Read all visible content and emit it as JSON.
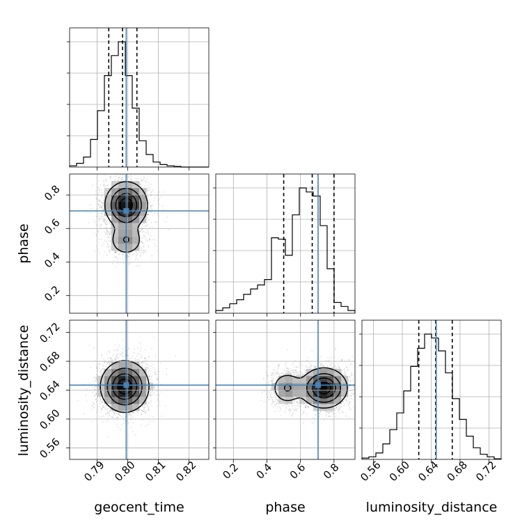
{
  "chart_data": {
    "type": "corner",
    "parameters": [
      "geocent_time",
      "phase",
      "luminosity_distance"
    ],
    "truths": {
      "geocent_time": 0.7995,
      "phase": 0.705,
      "luminosity_distance": 0.647
    },
    "truth_color": "#4682b4",
    "diagonal": [
      {
        "name": "geocent_time",
        "xlabel": "geocent_time",
        "xlim": [
          0.781,
          0.8265
        ],
        "xticks": [
          0.79,
          0.8,
          0.81,
          0.82
        ],
        "xtick_labels": [
          "0.79",
          "0.80",
          "0.81",
          "0.82"
        ],
        "quantiles": [
          0.7938,
          0.7983,
          0.803
        ],
        "bins": [
          0.781,
          0.8265
        ],
        "hist": [
          1,
          3,
          8,
          22,
          45,
          73,
          89,
          100,
          73,
          47,
          21,
          10,
          4,
          2,
          1,
          0.5,
          0,
          0,
          0,
          0
        ]
      },
      {
        "name": "phase",
        "xlabel": "phase",
        "xlim": [
          0.095,
          0.925
        ],
        "xticks": [
          0.2,
          0.4,
          0.6,
          0.8
        ],
        "xtick_labels": [
          "0.2",
          "0.4",
          "0.6",
          "0.8"
        ],
        "quantiles": [
          0.5,
          0.67,
          0.8
        ],
        "bins": [
          0.095,
          0.925
        ],
        "hist": [
          2,
          4,
          7,
          10,
          14,
          18,
          21,
          25,
          56,
          55,
          43,
          73,
          93,
          90,
          87,
          65,
          33,
          8,
          5,
          2
        ]
      },
      {
        "name": "luminosity_distance",
        "xlabel": "luminosity_distance",
        "xlim": [
          0.544,
          0.737
        ],
        "xticks": [
          0.56,
          0.6,
          0.64,
          0.68,
          0.72
        ],
        "xtick_labels": [
          "0.56",
          "0.60",
          "0.64",
          "0.68",
          "0.72"
        ],
        "quantiles": [
          0.6228,
          0.6462,
          0.6692
        ],
        "bins": [
          0.544,
          0.737
        ],
        "hist": [
          1,
          2,
          5,
          12,
          23,
          36,
          53,
          72,
          86,
          97,
          94,
          84,
          67,
          47,
          31,
          18,
          9,
          4,
          2,
          0.5
        ]
      }
    ],
    "pairs": [
      {
        "x": "geocent_time",
        "y": "phase",
        "ylabel": "phase",
        "ylim": [
          0.095,
          0.925
        ],
        "yticks": [
          0.2,
          0.4,
          0.6,
          0.8
        ],
        "ytick_labels": [
          "0.2",
          "0.4",
          "0.6",
          "0.8"
        ],
        "modes": [
          {
            "x": 0.7995,
            "y": 0.74,
            "sx": 0.0035,
            "sy": 0.07,
            "w": 0.8
          },
          {
            "x": 0.7995,
            "y": 0.53,
            "sx": 0.003,
            "sy": 0.05,
            "w": 0.3
          }
        ]
      },
      {
        "x": "geocent_time",
        "y": "luminosity_distance",
        "ylabel": "luminosity_distance",
        "ylim": [
          0.544,
          0.737
        ],
        "yticks": [
          0.56,
          0.6,
          0.64,
          0.68,
          0.72
        ],
        "ytick_labels": [
          "0.56",
          "0.60",
          "0.64",
          "0.68",
          "0.72"
        ],
        "modes": [
          {
            "x": 0.799,
            "y": 0.645,
            "sx": 0.004,
            "sy": 0.018,
            "w": 1
          }
        ]
      },
      {
        "x": "phase",
        "y": "luminosity_distance",
        "ylabel": "luminosity_distance",
        "ylim": [
          0.544,
          0.737
        ],
        "modes": [
          {
            "x": 0.74,
            "y": 0.643,
            "sx": 0.07,
            "sy": 0.014,
            "w": 0.9
          },
          {
            "x": 0.52,
            "y": 0.643,
            "sx": 0.05,
            "sy": 0.012,
            "w": 0.35
          }
        ]
      }
    ],
    "grid": true
  }
}
